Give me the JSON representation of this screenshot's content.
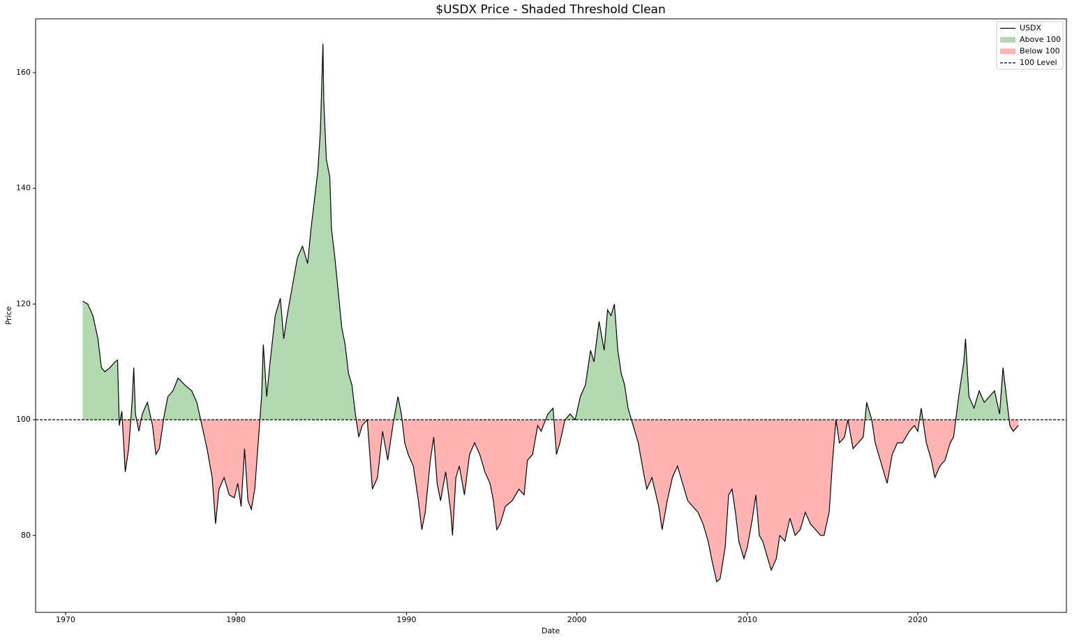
{
  "chart_data": {
    "type": "threshold-line",
    "title": "$USDX Price - Shaded Threshold Clean",
    "x_label": "Date",
    "y_label": "Price",
    "xlim": [
      1968.24,
      2028.72
    ],
    "ylim": [
      66.7,
      169.3
    ],
    "xticks": [
      1970,
      1980,
      1990,
      2000,
      2010,
      2020
    ],
    "yticks": [
      80,
      100,
      120,
      140,
      160
    ],
    "legend": "upper right",
    "threshold": {
      "value": 100,
      "label": "100 Level",
      "color": "#000000"
    },
    "fills": {
      "above": {
        "label": "Above 100",
        "color": "#b3d9b3"
      },
      "below": {
        "label": "Below 100",
        "color": "#ffb3b3"
      }
    },
    "series": [
      {
        "name": "USDX",
        "color": "#000000",
        "x": [
          1971.0,
          1971.3,
          1971.6,
          1971.9,
          1972.1,
          1972.3,
          1972.6,
          1972.9,
          1973.05,
          1973.15,
          1973.3,
          1973.5,
          1973.7,
          1973.9,
          1974.0,
          1974.1,
          1974.3,
          1974.5,
          1974.8,
          1975.1,
          1975.3,
          1975.5,
          1975.8,
          1976.0,
          1976.3,
          1976.6,
          1977.0,
          1977.4,
          1977.7,
          1978.0,
          1978.3,
          1978.6,
          1978.8,
          1979.0,
          1979.3,
          1979.6,
          1979.9,
          1980.1,
          1980.3,
          1980.5,
          1980.7,
          1980.9,
          1981.1,
          1981.3,
          1981.5,
          1981.6,
          1981.8,
          1982.0,
          1982.3,
          1982.6,
          1982.8,
          1983.0,
          1983.3,
          1983.6,
          1983.9,
          1984.2,
          1984.4,
          1984.6,
          1984.8,
          1984.95,
          1985.1,
          1985.15,
          1985.3,
          1985.5,
          1985.6,
          1985.8,
          1986.0,
          1986.2,
          1986.4,
          1986.6,
          1986.8,
          1987.0,
          1987.2,
          1987.4,
          1987.7,
          1987.9,
          1988.0,
          1988.3,
          1988.6,
          1988.9,
          1989.2,
          1989.5,
          1989.7,
          1989.9,
          1990.1,
          1990.4,
          1990.7,
          1990.9,
          1991.1,
          1991.4,
          1991.6,
          1991.8,
          1992.0,
          1992.3,
          1992.6,
          1992.7,
          1992.9,
          1993.1,
          1993.4,
          1993.7,
          1994.0,
          1994.3,
          1994.6,
          1994.9,
          1995.1,
          1995.3,
          1995.5,
          1995.8,
          1996.2,
          1996.6,
          1996.9,
          1997.1,
          1997.4,
          1997.7,
          1997.9,
          1998.3,
          1998.6,
          1998.8,
          1999.0,
          1999.3,
          1999.6,
          1999.9,
          2000.2,
          2000.5,
          2000.8,
          2001.0,
          2001.3,
          2001.6,
          2001.8,
          2002.0,
          2002.2,
          2002.4,
          2002.6,
          2002.8,
          2003.0,
          2003.3,
          2003.6,
          2003.9,
          2004.1,
          2004.4,
          2004.8,
          2005.0,
          2005.3,
          2005.6,
          2005.9,
          2006.2,
          2006.5,
          2006.8,
          2007.1,
          2007.4,
          2007.7,
          2007.9,
          2008.2,
          2008.4,
          2008.7,
          2008.9,
          2009.1,
          2009.3,
          2009.5,
          2009.8,
          2010.0,
          2010.3,
          2010.5,
          2010.7,
          2010.9,
          2011.2,
          2011.4,
          2011.7,
          2011.9,
          2012.2,
          2012.5,
          2012.8,
          2013.1,
          2013.4,
          2013.7,
          2014.0,
          2014.3,
          2014.5,
          2014.8,
          2015.0,
          2015.2,
          2015.4,
          2015.7,
          2015.9,
          2016.2,
          2016.5,
          2016.8,
          2017.0,
          2017.3,
          2017.5,
          2017.8,
          2018.0,
          2018.2,
          2018.5,
          2018.8,
          2019.1,
          2019.5,
          2019.8,
          2020.0,
          2020.2,
          2020.5,
          2020.8,
          2021.0,
          2021.3,
          2021.6,
          2021.9,
          2022.1,
          2022.4,
          2022.7,
          2022.8,
          2023.0,
          2023.3,
          2023.6,
          2023.9,
          2024.2,
          2024.5,
          2024.8,
          2025.0,
          2025.2,
          2025.4,
          2025.6,
          2025.9
        ],
        "values": [
          120.5,
          120,
          118,
          114,
          109,
          108.3,
          109,
          110,
          110.3,
          99,
          101.5,
          91,
          95,
          103,
          109,
          101,
          98,
          101,
          103,
          99,
          94,
          95,
          101,
          104,
          105,
          107.2,
          106,
          105,
          103,
          99,
          95,
          90,
          82,
          88,
          90,
          87,
          86.5,
          89,
          85,
          95,
          86,
          84.5,
          88,
          96,
          104,
          113,
          104,
          110,
          118,
          121,
          114,
          118,
          123,
          128,
          130,
          127,
          133,
          138,
          143,
          150,
          165,
          155,
          145,
          142,
          133,
          128,
          122,
          116,
          113,
          108,
          106,
          101,
          97,
          99,
          100,
          92,
          88,
          90,
          98,
          93,
          99,
          104,
          101,
          96,
          94,
          92,
          86,
          81,
          84,
          93,
          97,
          89,
          86,
          91,
          84,
          80,
          90,
          92,
          87,
          94,
          96,
          94,
          91,
          89,
          86,
          81,
          82,
          85,
          86,
          88,
          87,
          93,
          94,
          99,
          98,
          101,
          102,
          94,
          96,
          100,
          101,
          100,
          104,
          106,
          112,
          110,
          117,
          112,
          119,
          118,
          120,
          112,
          108,
          106,
          102,
          99,
          96,
          91,
          88,
          90,
          85,
          81,
          86,
          90,
          92,
          89,
          86,
          85,
          84,
          82,
          79,
          76,
          72,
          72.5,
          78,
          87,
          88,
          84,
          79,
          76,
          78,
          83,
          87,
          80,
          79,
          76,
          74,
          76,
          80,
          79,
          83,
          80,
          81,
          84,
          82,
          81,
          80,
          80,
          84,
          93,
          100,
          96,
          97,
          100,
          95,
          96,
          97,
          103,
          100,
          96,
          93,
          91,
          89,
          94,
          96,
          96,
          98,
          99,
          98,
          102,
          96,
          93,
          90,
          92,
          93,
          96,
          97,
          104,
          110,
          114,
          104,
          102,
          105,
          103,
          104,
          105,
          101,
          109,
          104,
          99,
          98,
          99
        ]
      }
    ]
  }
}
